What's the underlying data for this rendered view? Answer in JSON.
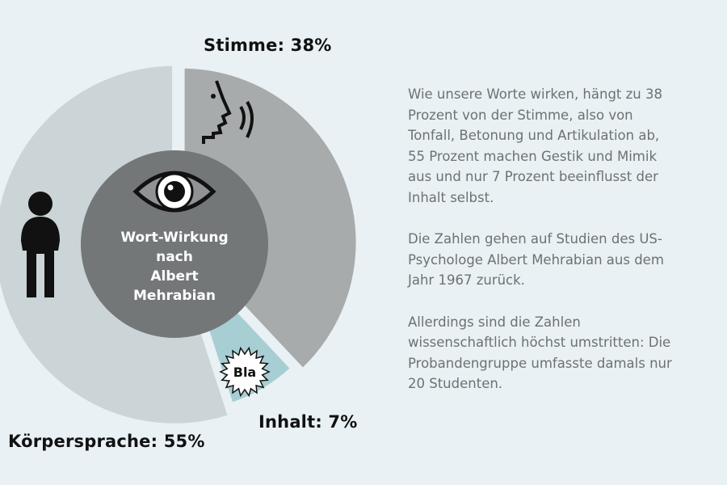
{
  "chart_data": {
    "type": "pie",
    "variant": "donut",
    "title": "Wort-Wirkung nach Albert Mehrabian",
    "categories": [
      "Stimme",
      "Inhalt",
      "Körpersprache"
    ],
    "values": [
      38,
      7,
      55
    ],
    "unit": "%",
    "labels": [
      "Stimme: 38%",
      "Inhalt: 7%",
      "Körpersprache: 55%"
    ],
    "colors": [
      "#a8abab",
      "#a7ced3",
      "#cbd4d7"
    ],
    "center_color": "#747778",
    "bubble_text": "Bla"
  },
  "center_title_lines": [
    "Wort-Wirkung",
    "nach",
    "Albert",
    "Mehrabian"
  ],
  "description": [
    [
      "Wie unsere Worte wirken, hängt zu 38",
      "Prozent von der Stimme, also von",
      "Tonfall, Betonung und Artikulation ab,",
      "55 Prozent machen Gestik und Mimik",
      "aus und nur 7 Prozent beeinflusst der",
      "Inhalt selbst."
    ],
    [
      "Die Zahlen gehen auf Studien des US-",
      "Psychologe Albert Mehrabian aus dem",
      "Jahr 1967 zurück."
    ],
    [
      "Allerdings sind die Zahlen",
      "wissenschaftlich höchst umstritten: Die",
      "Probandengruppe umfasste damals nur",
      "20 Studenten."
    ]
  ]
}
